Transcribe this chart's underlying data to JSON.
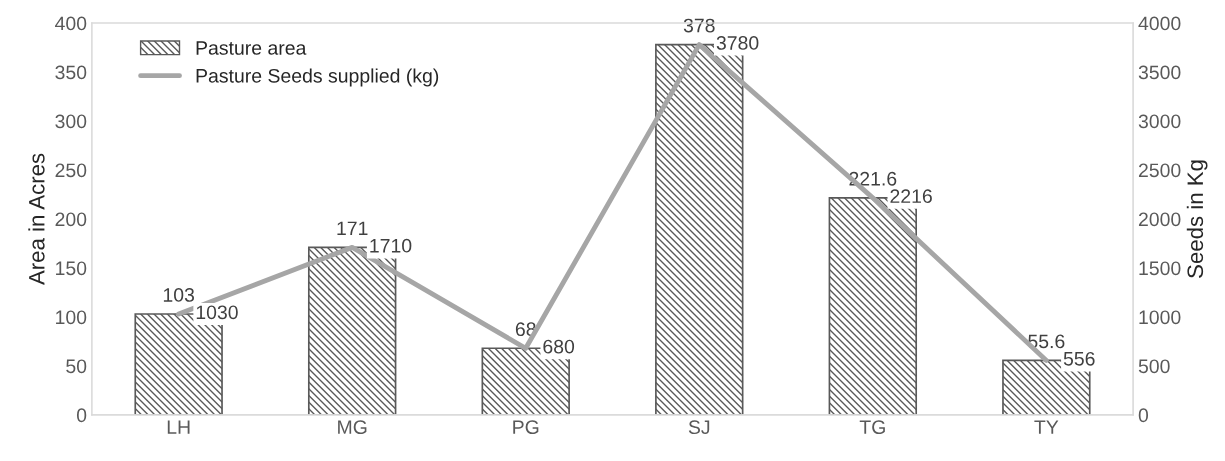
{
  "chart_data": {
    "type": "bar",
    "ylabel": "Area in Acres",
    "y2label": "Seeds in Kg",
    "categories": [
      "LH",
      "MG",
      "PG",
      "SJ",
      "TG",
      "TY"
    ],
    "series": [
      {
        "name": "Pasture area",
        "color": "#595959",
        "values": [
          103,
          171,
          68,
          378,
          221.6,
          55.6
        ]
      },
      {
        "name": "Pasture Seeds supplied (kg)",
        "type": "line",
        "axis": "y2",
        "color": "#a6a6a6",
        "values": [
          1030,
          1710,
          680,
          3780,
          2216,
          556
        ]
      }
    ],
    "ylim": [
      0,
      400
    ],
    "yticks": [
      0,
      50,
      100,
      150,
      200,
      250,
      300,
      350,
      400
    ],
    "y2lim": [
      0,
      4000
    ],
    "y2ticks": [
      0,
      500,
      1000,
      1500,
      2000,
      2500,
      3000,
      3500,
      4000
    ],
    "data_labels": true,
    "legend": "top left",
    "grid": false
  }
}
